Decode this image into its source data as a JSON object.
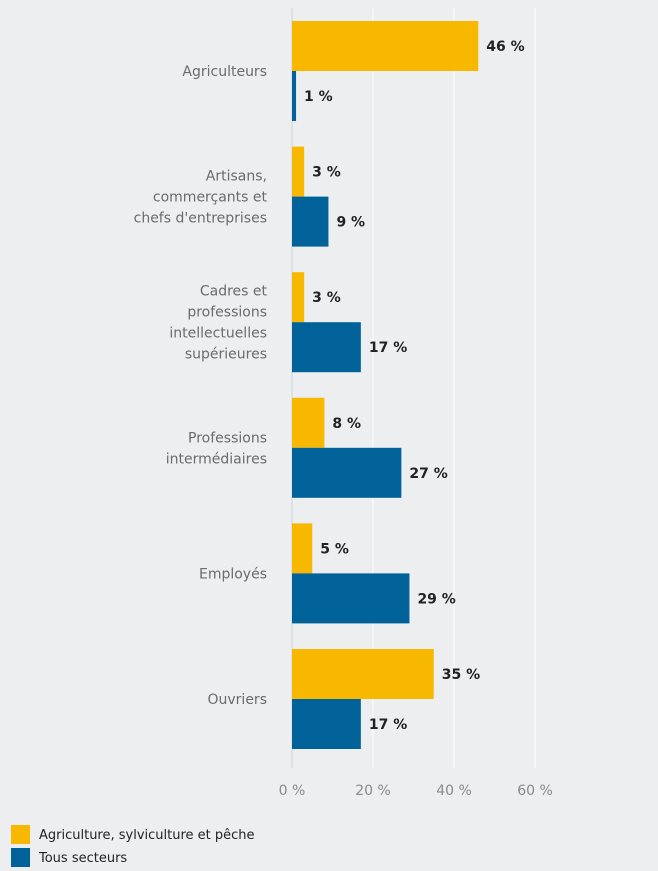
{
  "chart_data": {
    "type": "bar",
    "orientation": "horizontal",
    "categories": [
      [
        "Agriculteurs"
      ],
      [
        "Artisans,",
        "commerçants et",
        "chefs d'entreprises"
      ],
      [
        "Cadres et",
        "professions",
        "intellectuelles",
        "supérieures"
      ],
      [
        "Professions",
        "intermédiaires"
      ],
      [
        "Employés"
      ],
      [
        "Ouvriers"
      ]
    ],
    "series": [
      {
        "name": "Agriculture, sylviculture et pêche",
        "color": "#f9b800",
        "values": [
          46,
          3,
          3,
          8,
          5,
          35
        ],
        "labels": [
          "46 %",
          "3 %",
          "3 %",
          "8 %",
          "5 %",
          "35 %"
        ]
      },
      {
        "name": "Tous secteurs",
        "color": "#006298",
        "values": [
          1,
          9,
          17,
          27,
          29,
          17
        ],
        "labels": [
          "1 %",
          "9 %",
          "17 %",
          "27 %",
          "29 %",
          "17 %"
        ]
      }
    ],
    "xlim": [
      0,
      60
    ],
    "x_ticks": [
      0,
      20,
      40,
      60
    ],
    "x_tick_labels": [
      "0 %",
      "20 %",
      "40 %",
      "60 %"
    ],
    "grid": true,
    "legend_position": "bottom-left"
  }
}
